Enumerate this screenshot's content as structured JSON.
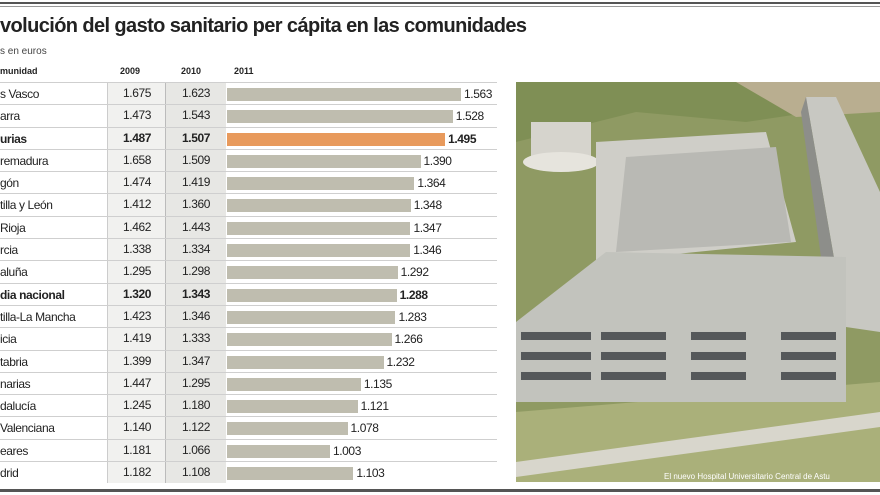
{
  "title": "volución del gasto sanitario per cápita en las comunidades",
  "subtitle": "s en euros",
  "photo_caption": "El nuevo Hospital Universitario Central de Astu",
  "chart_data": {
    "type": "table",
    "title": "volución del gasto sanitario per cápita en las comunidades",
    "unit": "s en euros",
    "headers": [
      "munidad",
      "2009",
      "2010",
      "2011"
    ],
    "bar_column": "2011",
    "highlight_color": "#e89a5c",
    "bar_color": "#bfbdaf",
    "rows": [
      {
        "name": "s Vasco",
        "y2009": "1.675",
        "y2010": "1.623",
        "y2011": "1.563",
        "v": 1563
      },
      {
        "name": "arra",
        "y2009": "1.473",
        "y2010": "1.543",
        "y2011": "1.528",
        "v": 1528
      },
      {
        "name": "urias",
        "y2009": "1.487",
        "y2010": "1.507",
        "y2011": "1.495",
        "v": 1495,
        "highlight": true
      },
      {
        "name": "remadura",
        "y2009": "1.658",
        "y2010": "1.509",
        "y2011": "1.390",
        "v": 1390
      },
      {
        "name": "gón",
        "y2009": "1.474",
        "y2010": "1.419",
        "y2011": "1.364",
        "v": 1364
      },
      {
        "name": "tilla y León",
        "y2009": "1.412",
        "y2010": "1.360",
        "y2011": "1.348",
        "v": 1348
      },
      {
        "name": "Rioja",
        "y2009": "1.462",
        "y2010": "1.443",
        "y2011": "1.347",
        "v": 1347
      },
      {
        "name": "rcia",
        "y2009": "1.338",
        "y2010": "1.334",
        "y2011": "1.346",
        "v": 1346
      },
      {
        "name": "aluña",
        "y2009": "1.295",
        "y2010": "1.298",
        "y2011": "1.292",
        "v": 1292
      },
      {
        "name": "dia nacional",
        "y2009": "1.320",
        "y2010": "1.343",
        "y2011": "1.288",
        "v": 1288,
        "bold": true
      },
      {
        "name": "tilla-La Mancha",
        "y2009": "1.423",
        "y2010": "1.346",
        "y2011": "1.283",
        "v": 1283
      },
      {
        "name": "icia",
        "y2009": "1.419",
        "y2010": "1.333",
        "y2011": "1.266",
        "v": 1266
      },
      {
        "name": "tabria",
        "y2009": "1.399",
        "y2010": "1.347",
        "y2011": "1.232",
        "v": 1232
      },
      {
        "name": "narias",
        "y2009": "1.447",
        "y2010": "1.295",
        "y2011": "1.135",
        "v": 1135
      },
      {
        "name": "dalucía",
        "y2009": "1.245",
        "y2010": "1.180",
        "y2011": "1.121",
        "v": 1121
      },
      {
        "name": "Valenciana",
        "y2009": "1.140",
        "y2010": "1.122",
        "y2011": "1.078",
        "v": 1078
      },
      {
        "name": "eares",
        "y2009": "1.181",
        "y2010": "1.066",
        "y2011": "1.003",
        "v": 1003
      },
      {
        "name": "drid",
        "y2009": "1.182",
        "y2010": "1.108",
        "y2011": "1.103",
        "v": 1103
      }
    ]
  }
}
